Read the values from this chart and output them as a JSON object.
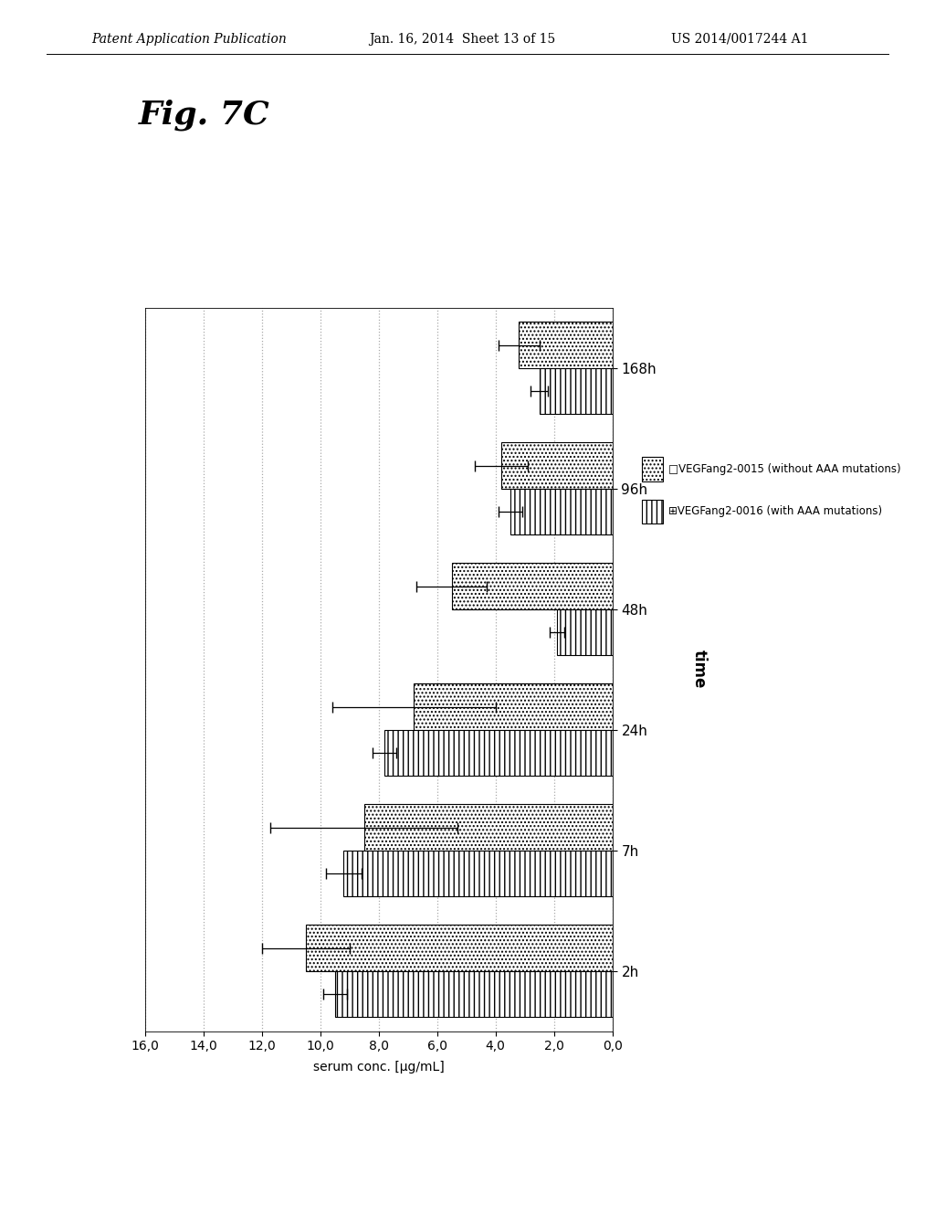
{
  "fig_label": "Fig. 7C",
  "conc_label": "serum conc. [µg/mL]",
  "time_label": "time",
  "time_points": [
    "2h",
    "7h",
    "24h",
    "48h",
    "96h",
    "168h"
  ],
  "series1_label": "VEGFang2-0015 (without AAA mutations)",
  "series2_label": "VEGFang2-0016 (with AAA mutations)",
  "series1_values": [
    10.5,
    8.5,
    6.8,
    5.5,
    3.8,
    3.2
  ],
  "series2_values": [
    9.5,
    9.2,
    7.8,
    1.9,
    3.5,
    2.5
  ],
  "series1_errors": [
    1.5,
    3.2,
    2.8,
    1.2,
    0.9,
    0.7
  ],
  "series2_errors": [
    0.4,
    0.6,
    0.4,
    0.25,
    0.4,
    0.3
  ],
  "xlim_max": 16.0,
  "xticks": [
    0.0,
    2.0,
    4.0,
    6.0,
    8.0,
    10.0,
    12.0,
    14.0,
    16.0
  ],
  "background_color": "#ffffff",
  "header_text": "Patent Application Publication",
  "header_date": "Jan. 16, 2014  Sheet 13 of 15",
  "header_number": "US 2014/0017244 A1"
}
